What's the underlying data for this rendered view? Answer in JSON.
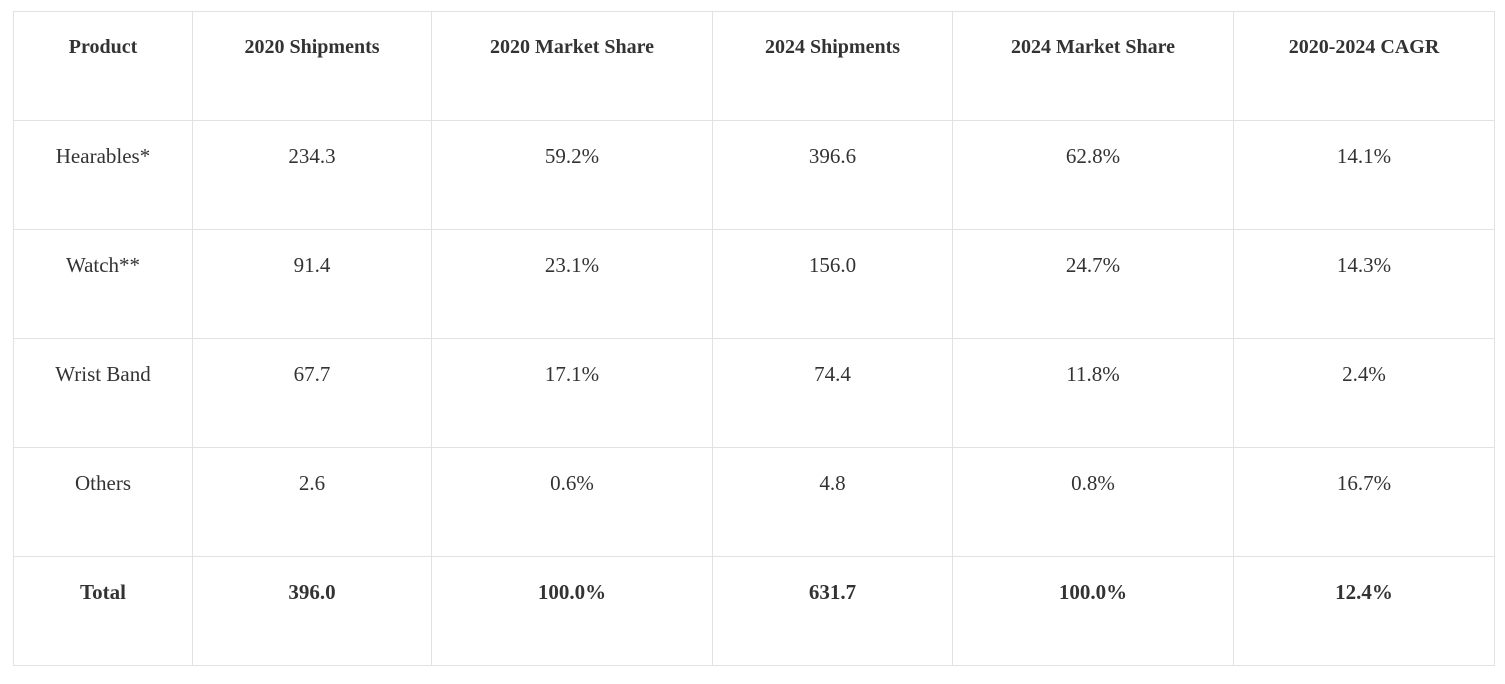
{
  "chart_data": {
    "type": "table",
    "columns": [
      "Product",
      "2020 Shipments",
      "2020 Market Share",
      "2024 Shipments",
      "2024 Market Share",
      "2020-2024 CAGR"
    ],
    "rows": [
      [
        "Hearables*",
        "234.3",
        "59.2%",
        "396.6",
        "62.8%",
        "14.1%"
      ],
      [
        "Watch**",
        "91.4",
        "23.1%",
        "156.0",
        "24.7%",
        "14.3%"
      ],
      [
        "Wrist Band",
        "67.7",
        "17.1%",
        "74.4",
        "11.8%",
        "2.4%"
      ],
      [
        "Others",
        "2.6",
        "0.6%",
        "4.8",
        "0.8%",
        "16.7%"
      ],
      [
        "Total",
        "396.0",
        "100.0%",
        "631.7",
        "100.0%",
        "12.4%"
      ]
    ]
  }
}
